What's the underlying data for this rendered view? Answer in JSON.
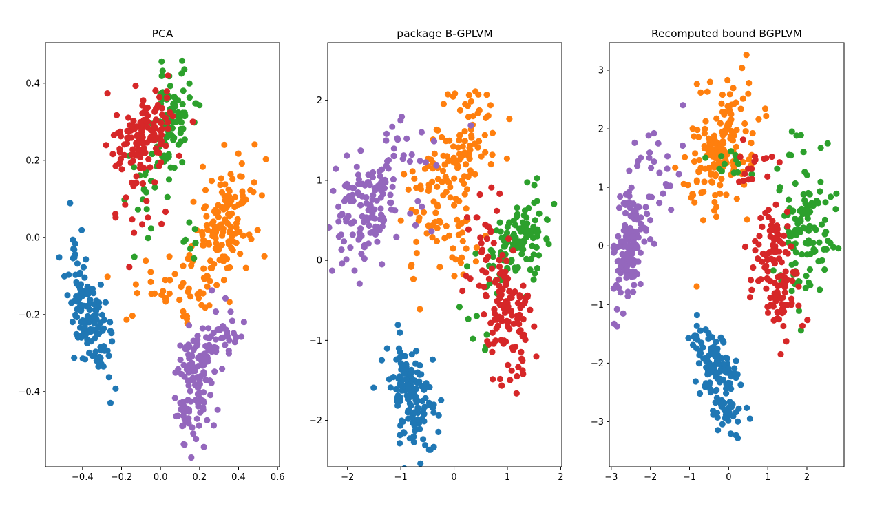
{
  "chart_data": [
    {
      "type": "scatter",
      "title": "PCA",
      "xlabel": "",
      "ylabel": "",
      "xlim": [
        -0.59,
        0.61
      ],
      "ylim": [
        -0.595,
        0.505
      ],
      "xticks": [
        -0.4,
        -0.2,
        0.0,
        0.2,
        0.4,
        0.6
      ],
      "yticks": [
        -0.4,
        -0.2,
        0.0,
        0.2,
        0.4
      ],
      "xtick_labels": [
        "−0.4",
        "−0.2",
        "0.0",
        "0.2",
        "0.4",
        "0.6"
      ],
      "ytick_labels": [
        "−0.4",
        "−0.2",
        "0.0",
        "0.2",
        "0.4"
      ],
      "grid": false,
      "clusters": [
        {
          "color": "#1f77b4",
          "n": 130,
          "seed": 11,
          "cx": -0.37,
          "cy": -0.21,
          "sx": 0.052,
          "sy": 0.075,
          "rho": -0.62
        },
        {
          "color": "#1f77b4",
          "n": 6,
          "seed": 12,
          "cx": -0.46,
          "cy": -0.03,
          "sx": 0.04,
          "sy": 0.05,
          "rho": 0.0
        },
        {
          "color": "#ff7f0e",
          "n": 150,
          "seed": 21,
          "cx": 0.31,
          "cy": 0.02,
          "sx": 0.09,
          "sy": 0.1,
          "rho": 0.55
        },
        {
          "color": "#ff7f0e",
          "n": 30,
          "seed": 22,
          "cx": 0.04,
          "cy": -0.13,
          "sx": 0.1,
          "sy": 0.04,
          "rho": 0.0
        },
        {
          "color": "#2ca02c",
          "n": 100,
          "seed": 31,
          "cx": 0.05,
          "cy": 0.31,
          "sx": 0.052,
          "sy": 0.065,
          "rho": 0.2
        },
        {
          "color": "#2ca02c",
          "n": 20,
          "seed": 32,
          "cx": -0.05,
          "cy": 0.12,
          "sx": 0.08,
          "sy": 0.06,
          "rho": 0.0
        },
        {
          "color": "#2ca02c",
          "n": 8,
          "seed": 33,
          "cx": 0.15,
          "cy": 0.0,
          "sx": 0.04,
          "sy": 0.04,
          "rho": 0.0
        },
        {
          "color": "#d62728",
          "n": 130,
          "seed": 41,
          "cx": -0.08,
          "cy": 0.27,
          "sx": 0.075,
          "sy": 0.055,
          "rho": 0.3
        },
        {
          "color": "#d62728",
          "n": 20,
          "seed": 42,
          "cx": -0.12,
          "cy": 0.12,
          "sx": 0.06,
          "sy": 0.06,
          "rho": 0.0
        },
        {
          "color": "#9467bd",
          "n": 130,
          "seed": 51,
          "cx": 0.17,
          "cy": -0.38,
          "sx": 0.05,
          "sy": 0.08,
          "rho": 0.25
        },
        {
          "color": "#9467bd",
          "n": 30,
          "seed": 52,
          "cx": 0.34,
          "cy": -0.25,
          "sx": 0.05,
          "sy": 0.05,
          "rho": 0.0
        }
      ]
    },
    {
      "type": "scatter",
      "title": "package B-GPLVM",
      "xlabel": "",
      "ylabel": "",
      "xlim": [
        -2.37,
        2.02
      ],
      "ylim": [
        -2.58,
        2.72
      ],
      "xticks": [
        -2,
        -1,
        0,
        1,
        2
      ],
      "yticks": [
        -2,
        -1,
        0,
        1,
        2
      ],
      "xtick_labels": [
        "−2",
        "−1",
        "0",
        "1",
        "2"
      ],
      "ytick_labels": [
        "−2",
        "−1",
        "0",
        "1",
        "2"
      ],
      "grid": false,
      "clusters": [
        {
          "color": "#1f77b4",
          "n": 150,
          "seed": 61,
          "cx": -0.85,
          "cy": -1.65,
          "sx": 0.25,
          "sy": 0.33,
          "rho": -0.45
        },
        {
          "color": "#ff7f0e",
          "n": 110,
          "seed": 71,
          "cx": 0.0,
          "cy": 1.35,
          "sx": 0.45,
          "sy": 0.42,
          "rho": 0.65
        },
        {
          "color": "#ff7f0e",
          "n": 55,
          "seed": 72,
          "cx": -0.2,
          "cy": 0.3,
          "sx": 0.4,
          "sy": 0.45,
          "rho": 0.0
        },
        {
          "color": "#2ca02c",
          "n": 110,
          "seed": 81,
          "cx": 1.2,
          "cy": 0.28,
          "sx": 0.27,
          "sy": 0.28,
          "rho": 0.3
        },
        {
          "color": "#2ca02c",
          "n": 10,
          "seed": 82,
          "cx": 0.5,
          "cy": -0.6,
          "sx": 0.3,
          "sy": 0.45,
          "rho": 0.0
        },
        {
          "color": "#d62728",
          "n": 130,
          "seed": 91,
          "cx": 0.95,
          "cy": -0.6,
          "sx": 0.3,
          "sy": 0.42,
          "rho": -0.3
        },
        {
          "color": "#d62728",
          "n": 15,
          "seed": 92,
          "cx": 0.55,
          "cy": 0.5,
          "sx": 0.3,
          "sy": 0.3,
          "rho": 0.0
        },
        {
          "color": "#9467bd",
          "n": 130,
          "seed": 101,
          "cx": -1.65,
          "cy": 0.65,
          "sx": 0.3,
          "sy": 0.32,
          "rho": 0.1
        },
        {
          "color": "#9467bd",
          "n": 30,
          "seed": 102,
          "cx": -0.9,
          "cy": 1.2,
          "sx": 0.45,
          "sy": 0.4,
          "rho": 0.0
        }
      ]
    },
    {
      "type": "scatter",
      "title": "Recomputed bound BGPLVM",
      "xlabel": "",
      "ylabel": "",
      "xlim": [
        -3.05,
        2.95
      ],
      "ylim": [
        -3.77,
        3.47
      ],
      "xticks": [
        -3,
        -2,
        -1,
        0,
        1,
        2
      ],
      "yticks": [
        -3,
        -2,
        -1,
        0,
        1,
        2,
        3
      ],
      "xtick_labels": [
        "−3",
        "−2",
        "−1",
        "0",
        "1",
        "2"
      ],
      "ytick_labels": [
        "−3",
        "−2",
        "−1",
        "0",
        "1",
        "2",
        "3"
      ],
      "grid": false,
      "clusters": [
        {
          "color": "#1f77b4",
          "n": 150,
          "seed": 111,
          "cx": -0.3,
          "cy": -2.15,
          "sx": 0.33,
          "sy": 0.45,
          "rho": -0.6
        },
        {
          "color": "#ff7f0e",
          "n": 170,
          "seed": 121,
          "cx": -0.15,
          "cy": 1.75,
          "sx": 0.45,
          "sy": 0.6,
          "rho": 0.4
        },
        {
          "color": "#2ca02c",
          "n": 120,
          "seed": 131,
          "cx": 1.9,
          "cy": 0.35,
          "sx": 0.35,
          "sy": 0.65,
          "rho": 0.1
        },
        {
          "color": "#2ca02c",
          "n": 12,
          "seed": 132,
          "cx": -0.1,
          "cy": 1.45,
          "sx": 0.35,
          "sy": 0.2,
          "rho": 0.0
        },
        {
          "color": "#d62728",
          "n": 130,
          "seed": 141,
          "cx": 1.15,
          "cy": -0.35,
          "sx": 0.3,
          "sy": 0.55,
          "rho": -0.2
        },
        {
          "color": "#d62728",
          "n": 15,
          "seed": 142,
          "cx": 0.55,
          "cy": 1.4,
          "sx": 0.35,
          "sy": 0.25,
          "rho": 0.0
        },
        {
          "color": "#9467bd",
          "n": 130,
          "seed": 151,
          "cx": -2.55,
          "cy": 0.0,
          "sx": 0.22,
          "sy": 0.45,
          "rho": 0.3
        },
        {
          "color": "#9467bd",
          "n": 30,
          "seed": 152,
          "cx": -1.9,
          "cy": 1.1,
          "sx": 0.45,
          "sy": 0.65,
          "rho": 0.0
        }
      ]
    }
  ]
}
